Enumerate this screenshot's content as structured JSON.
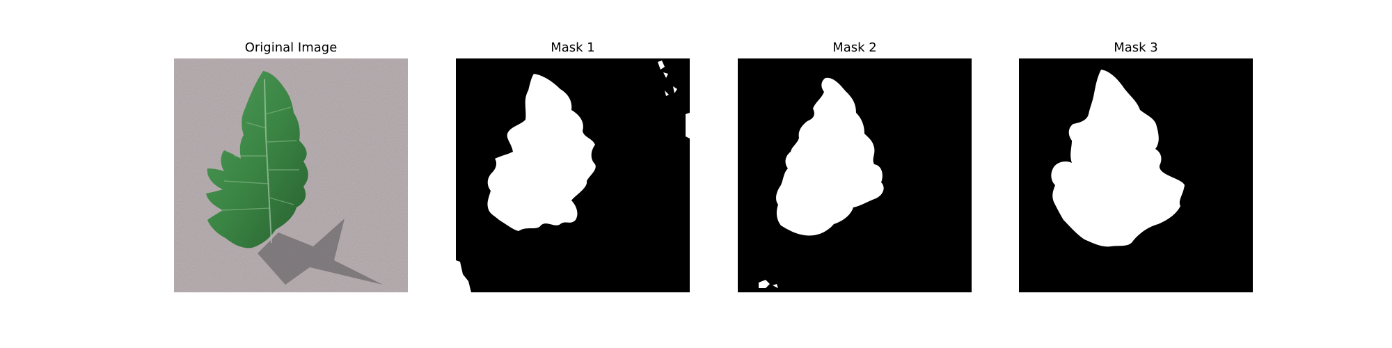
{
  "figure": {
    "panels": [
      {
        "title": "Original Image"
      },
      {
        "title": "Mask 1"
      },
      {
        "title": "Mask 2"
      },
      {
        "title": "Mask 3"
      }
    ]
  },
  "colors": {
    "background": "#ffffff",
    "mask_background": "#000000",
    "mask_foreground": "#ffffff",
    "leaf": "#3f8a48",
    "leaf_dark": "#1f5a2a",
    "ground": "#9e9396",
    "shadow": "#6e6a6c"
  }
}
